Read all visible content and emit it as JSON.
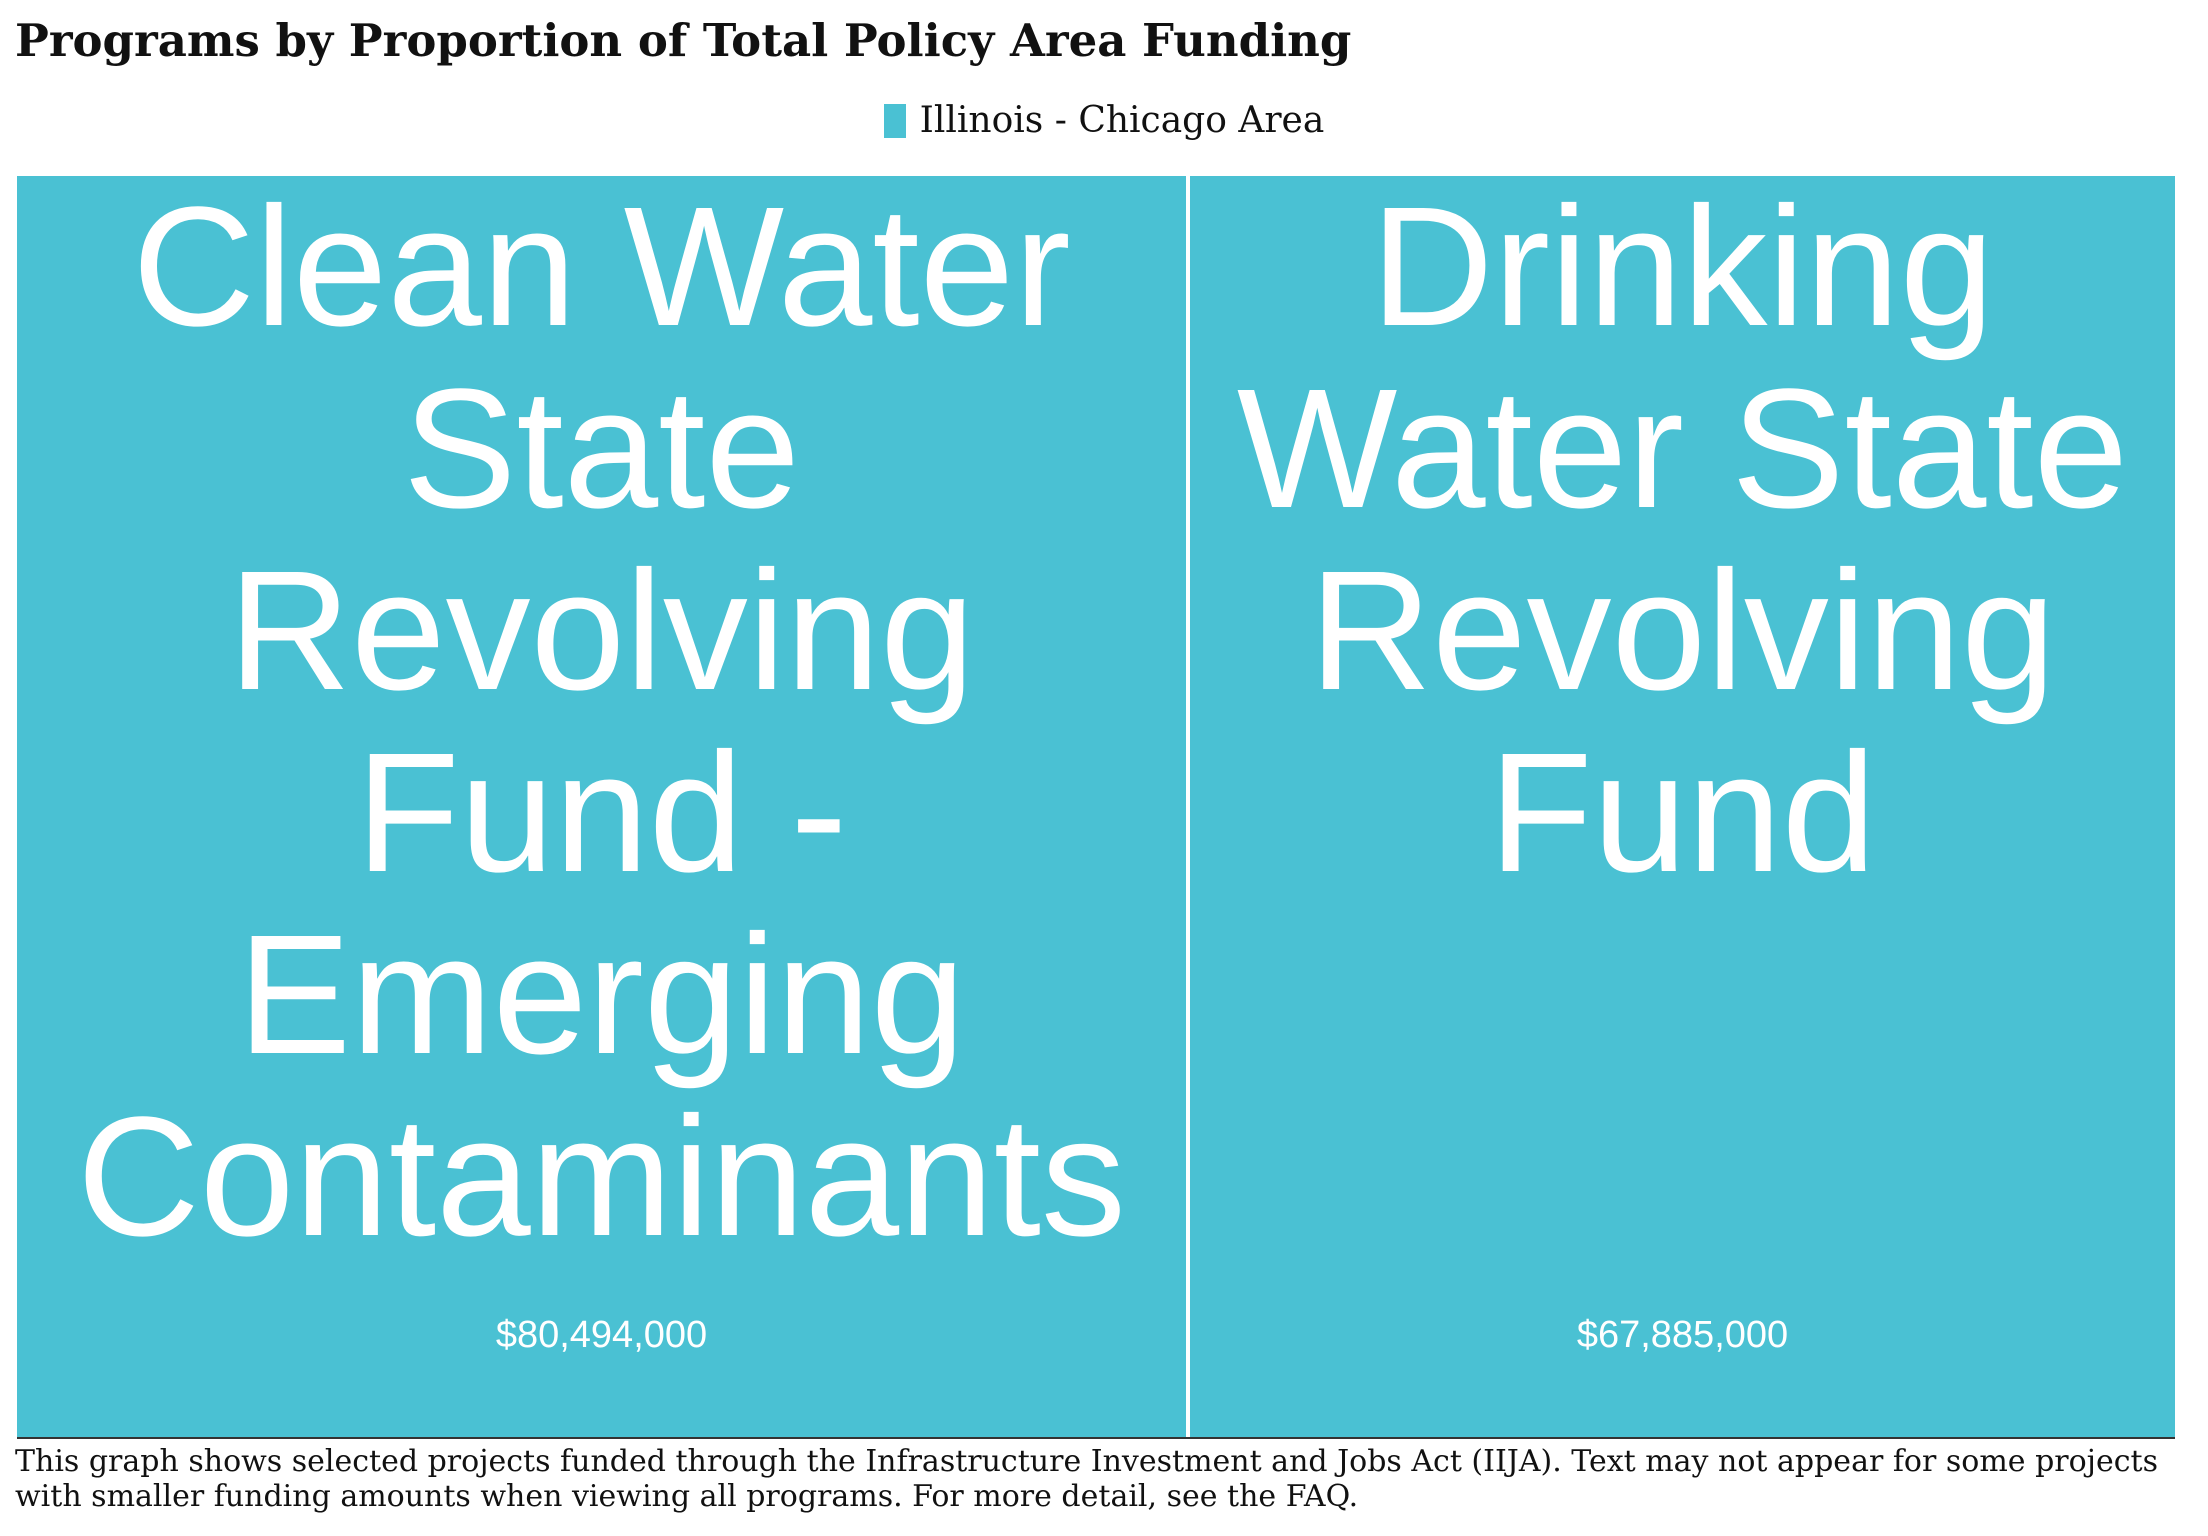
{
  "title": "Programs by Proportion of Total Policy Area Funding",
  "legend": {
    "label": "Illinois - Chicago Area",
    "color": "#4ac1d3"
  },
  "footnote": "This graph shows selected projects funded through the Infrastructure Investment and Jobs Act (IIJA). Text may not appear for some projects with smaller funding amounts when viewing all programs. For more detail, see the FAQ.",
  "chart_data": {
    "type": "treemap",
    "title": "Programs by Proportion of Total Policy Area Funding",
    "series": [
      {
        "name": "Illinois - Chicago Area",
        "color": "#4ac1d3"
      }
    ],
    "items": [
      {
        "name": "Clean Water State Revolving Fund - Emerging Contaminants",
        "value": 80494000,
        "value_label": "$80,494,000"
      },
      {
        "name": "Drinking Water State Revolving Fund",
        "value": 67885000,
        "value_label": "$67,885,000"
      }
    ]
  }
}
